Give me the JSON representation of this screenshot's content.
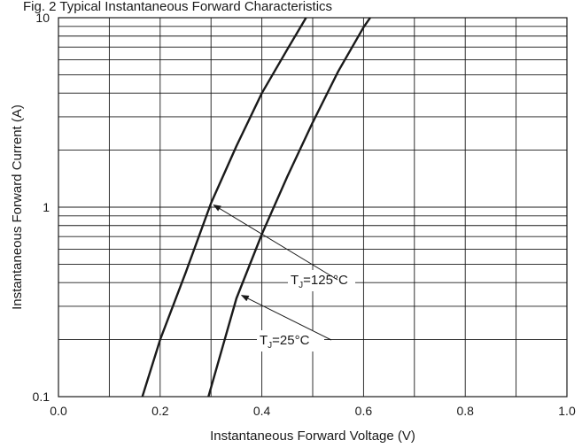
{
  "chart_data": {
    "type": "line",
    "title": "Fig. 2 Typical Instantaneous Forward Characteristics",
    "xlabel": "Instantaneous Forward Voltage (V)",
    "ylabel": "Instantaneous Forward Current (A)",
    "xlim": [
      0.0,
      1.0
    ],
    "ylim": [
      0.1,
      10
    ],
    "y_scale": "log",
    "grid": true,
    "x_ticks": [
      0.0,
      0.2,
      0.4,
      0.6,
      0.8,
      1.0
    ],
    "x_tick_labels": [
      "0.0",
      "0.2",
      "0.4",
      "0.6",
      "0.8",
      "1.0"
    ],
    "y_ticks": [
      0.1,
      1,
      10
    ],
    "y_tick_labels": [
      "0.1",
      "1",
      "10"
    ],
    "series": [
      {
        "name": "TJ = 125°C",
        "x": [
          0.165,
          0.2,
          0.25,
          0.3,
          0.35,
          0.4,
          0.45,
          0.487
        ],
        "y": [
          0.1,
          0.2,
          0.45,
          1.05,
          2.1,
          4.0,
          6.8,
          10
        ]
      },
      {
        "name": "TJ = 25°C",
        "x": [
          0.295,
          0.35,
          0.4,
          0.45,
          0.5,
          0.55,
          0.6,
          0.613
        ],
        "y": [
          0.1,
          0.33,
          0.72,
          1.45,
          2.8,
          5.2,
          8.9,
          10
        ]
      }
    ],
    "annotations": [
      {
        "id": "anno-125",
        "label_main": "T",
        "label_sub": "J",
        "label_rest": "=125°C",
        "series": 0,
        "point_x": 0.3,
        "point_y": 1.05
      },
      {
        "id": "anno-25",
        "label_main": "T",
        "label_sub": "J",
        "label_rest": "=25°C",
        "series": 1,
        "point_x": 0.355,
        "point_y": 0.35
      }
    ],
    "colors": {
      "line": "#1a1a1a",
      "grid": "#1a1a1a",
      "background": "#ffffff"
    }
  }
}
